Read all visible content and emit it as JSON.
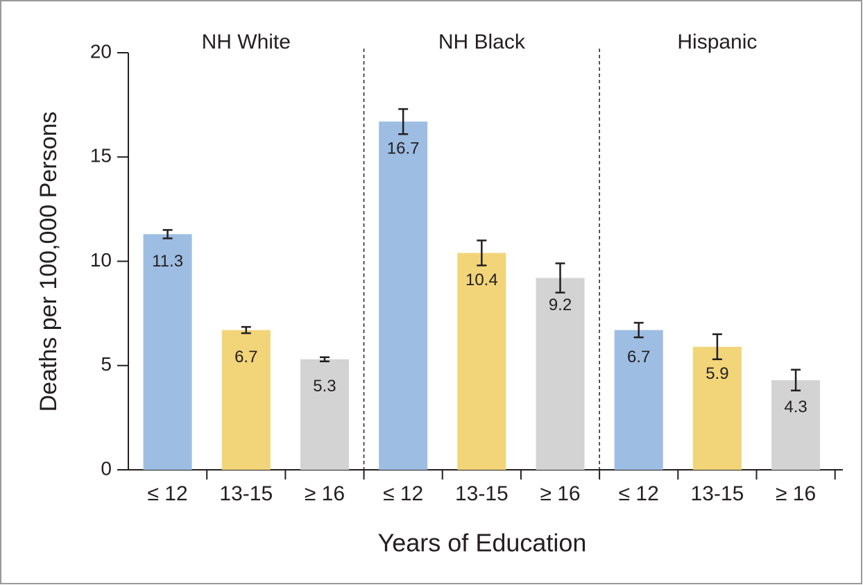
{
  "chart_data": {
    "type": "bar",
    "ylabel": "Deaths per 100,000 Persons",
    "xlabel": "Years of Education",
    "categories": [
      "≤ 12",
      "13-15",
      "≥ 16"
    ],
    "colors": [
      "#9dbde3",
      "#f2d479",
      "#d3d3d3"
    ],
    "panels": [
      {
        "name": "NH White",
        "values": [
          11.3,
          6.7,
          5.3
        ],
        "errors": [
          0.2,
          0.15,
          0.1
        ]
      },
      {
        "name": "NH Black",
        "values": [
          16.7,
          10.4,
          9.2
        ],
        "errors": [
          0.6,
          0.6,
          0.7
        ]
      },
      {
        "name": "Hispanic",
        "values": [
          6.7,
          5.9,
          4.3
        ],
        "errors": [
          0.35,
          0.6,
          0.5
        ]
      }
    ],
    "ylim": [
      0,
      20
    ],
    "yticks": [
      0,
      5,
      10,
      15,
      20
    ]
  }
}
